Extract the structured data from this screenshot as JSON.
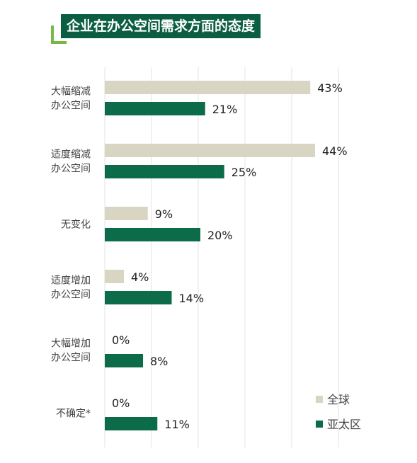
{
  "chart_data": {
    "type": "bar",
    "orientation": "horizontal",
    "title": "企业在办公空间需求方面的态度",
    "categories": [
      [
        "大幅缩减",
        "办公空间"
      ],
      [
        "适度缩减",
        "办公空间"
      ],
      [
        "无变化"
      ],
      [
        "适度增加",
        "办公空间"
      ],
      [
        "大幅增加",
        "办公空间"
      ],
      [
        "不确定*"
      ]
    ],
    "series": [
      {
        "name": "全球",
        "color": "#d9d5c3",
        "values": [
          43,
          44,
          9,
          4,
          0,
          0
        ],
        "labels": [
          "43%",
          "44%",
          "9%",
          "4%",
          "0%",
          "0%"
        ]
      },
      {
        "name": "亚太区",
        "color": "#0c6b48",
        "values": [
          21,
          25,
          20,
          14,
          8,
          11
        ],
        "labels": [
          "21%",
          "25%",
          "20%",
          "14%",
          "8%",
          "11%"
        ]
      }
    ],
    "xlim": [
      0,
      45
    ],
    "grid": true,
    "legend_position": "bottom-right"
  }
}
